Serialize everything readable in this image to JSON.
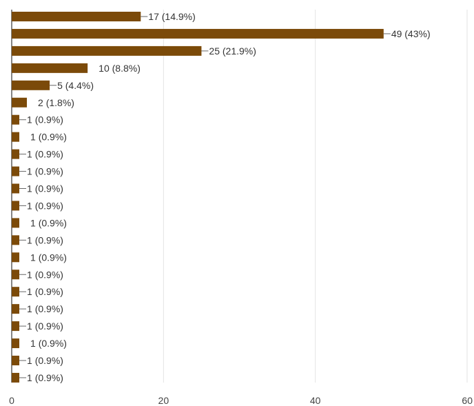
{
  "chart_data": {
    "type": "bar",
    "orientation": "horizontal",
    "title": "",
    "xlabel": "",
    "ylabel": "",
    "xlim": [
      0,
      60
    ],
    "x_ticks": [
      "0",
      "20",
      "40",
      "60"
    ],
    "grid": true,
    "legend": "none",
    "bar_color": "#7b4a09",
    "values": [
      17,
      49,
      25,
      10,
      5,
      2,
      1,
      1,
      1,
      1,
      1,
      1,
      1,
      1,
      1,
      1,
      1,
      1,
      1,
      1,
      1,
      1
    ],
    "labels": [
      "17 (14.9%)",
      "49 (43%)",
      "25 (21.9%)",
      "10 (8.8%)",
      "5 (4.4%)",
      "2 (1.8%)",
      "1 (0.9%)",
      "1 (0.9%)",
      "1 (0.9%)",
      "1 (0.9%)",
      "1 (0.9%)",
      "1 (0.9%)",
      "1 (0.9%)",
      "1 (0.9%)",
      "1 (0.9%)",
      "1 (0.9%)",
      "1 (0.9%)",
      "1 (0.9%)",
      "1 (0.9%)",
      "1 (0.9%)",
      "1 (0.9%)",
      "1 (0.9%)"
    ],
    "leader_line": [
      true,
      true,
      true,
      false,
      true,
      false,
      true,
      false,
      true,
      true,
      true,
      true,
      false,
      true,
      false,
      true,
      true,
      true,
      true,
      false,
      true,
      true
    ]
  }
}
